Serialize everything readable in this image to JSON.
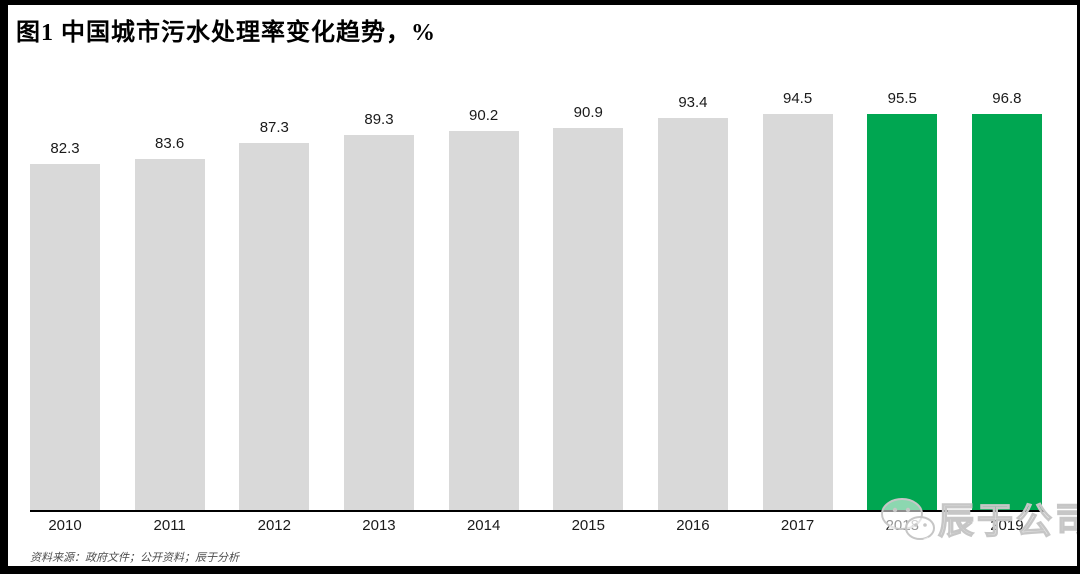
{
  "title": "图1 中国城市污水处理率变化趋势，%",
  "source_note": "资料来源：政府文件；公开资料；辰于分析",
  "watermark": {
    "icon": "wechat-icon",
    "label": "辰于公司"
  },
  "colors": {
    "bar_default": "#D9D9D9",
    "bar_highlight": "#00A651",
    "axis": "#000000",
    "frame": "#000000",
    "value_label_text": "#1A1A1A",
    "source_text": "#4D4D4D",
    "watermark_gray": "#C6C6C6"
  },
  "chart_data": {
    "type": "bar",
    "title": "图1 中国城市污水处理率变化趋势，%",
    "categories": [
      "2010",
      "2011",
      "2012",
      "2013",
      "2014",
      "2015",
      "2016",
      "2017",
      "2018",
      "2019"
    ],
    "values": [
      82.3,
      83.6,
      87.3,
      89.3,
      90.2,
      90.9,
      93.4,
      94.5,
      95.5,
      96.8
    ],
    "highlighted_categories": [
      "2018",
      "2019"
    ],
    "xlabel": "",
    "ylabel": "",
    "ylim": [
      0,
      100
    ],
    "data_labels_visible": true,
    "gridlines": false,
    "legend_position": "none"
  }
}
